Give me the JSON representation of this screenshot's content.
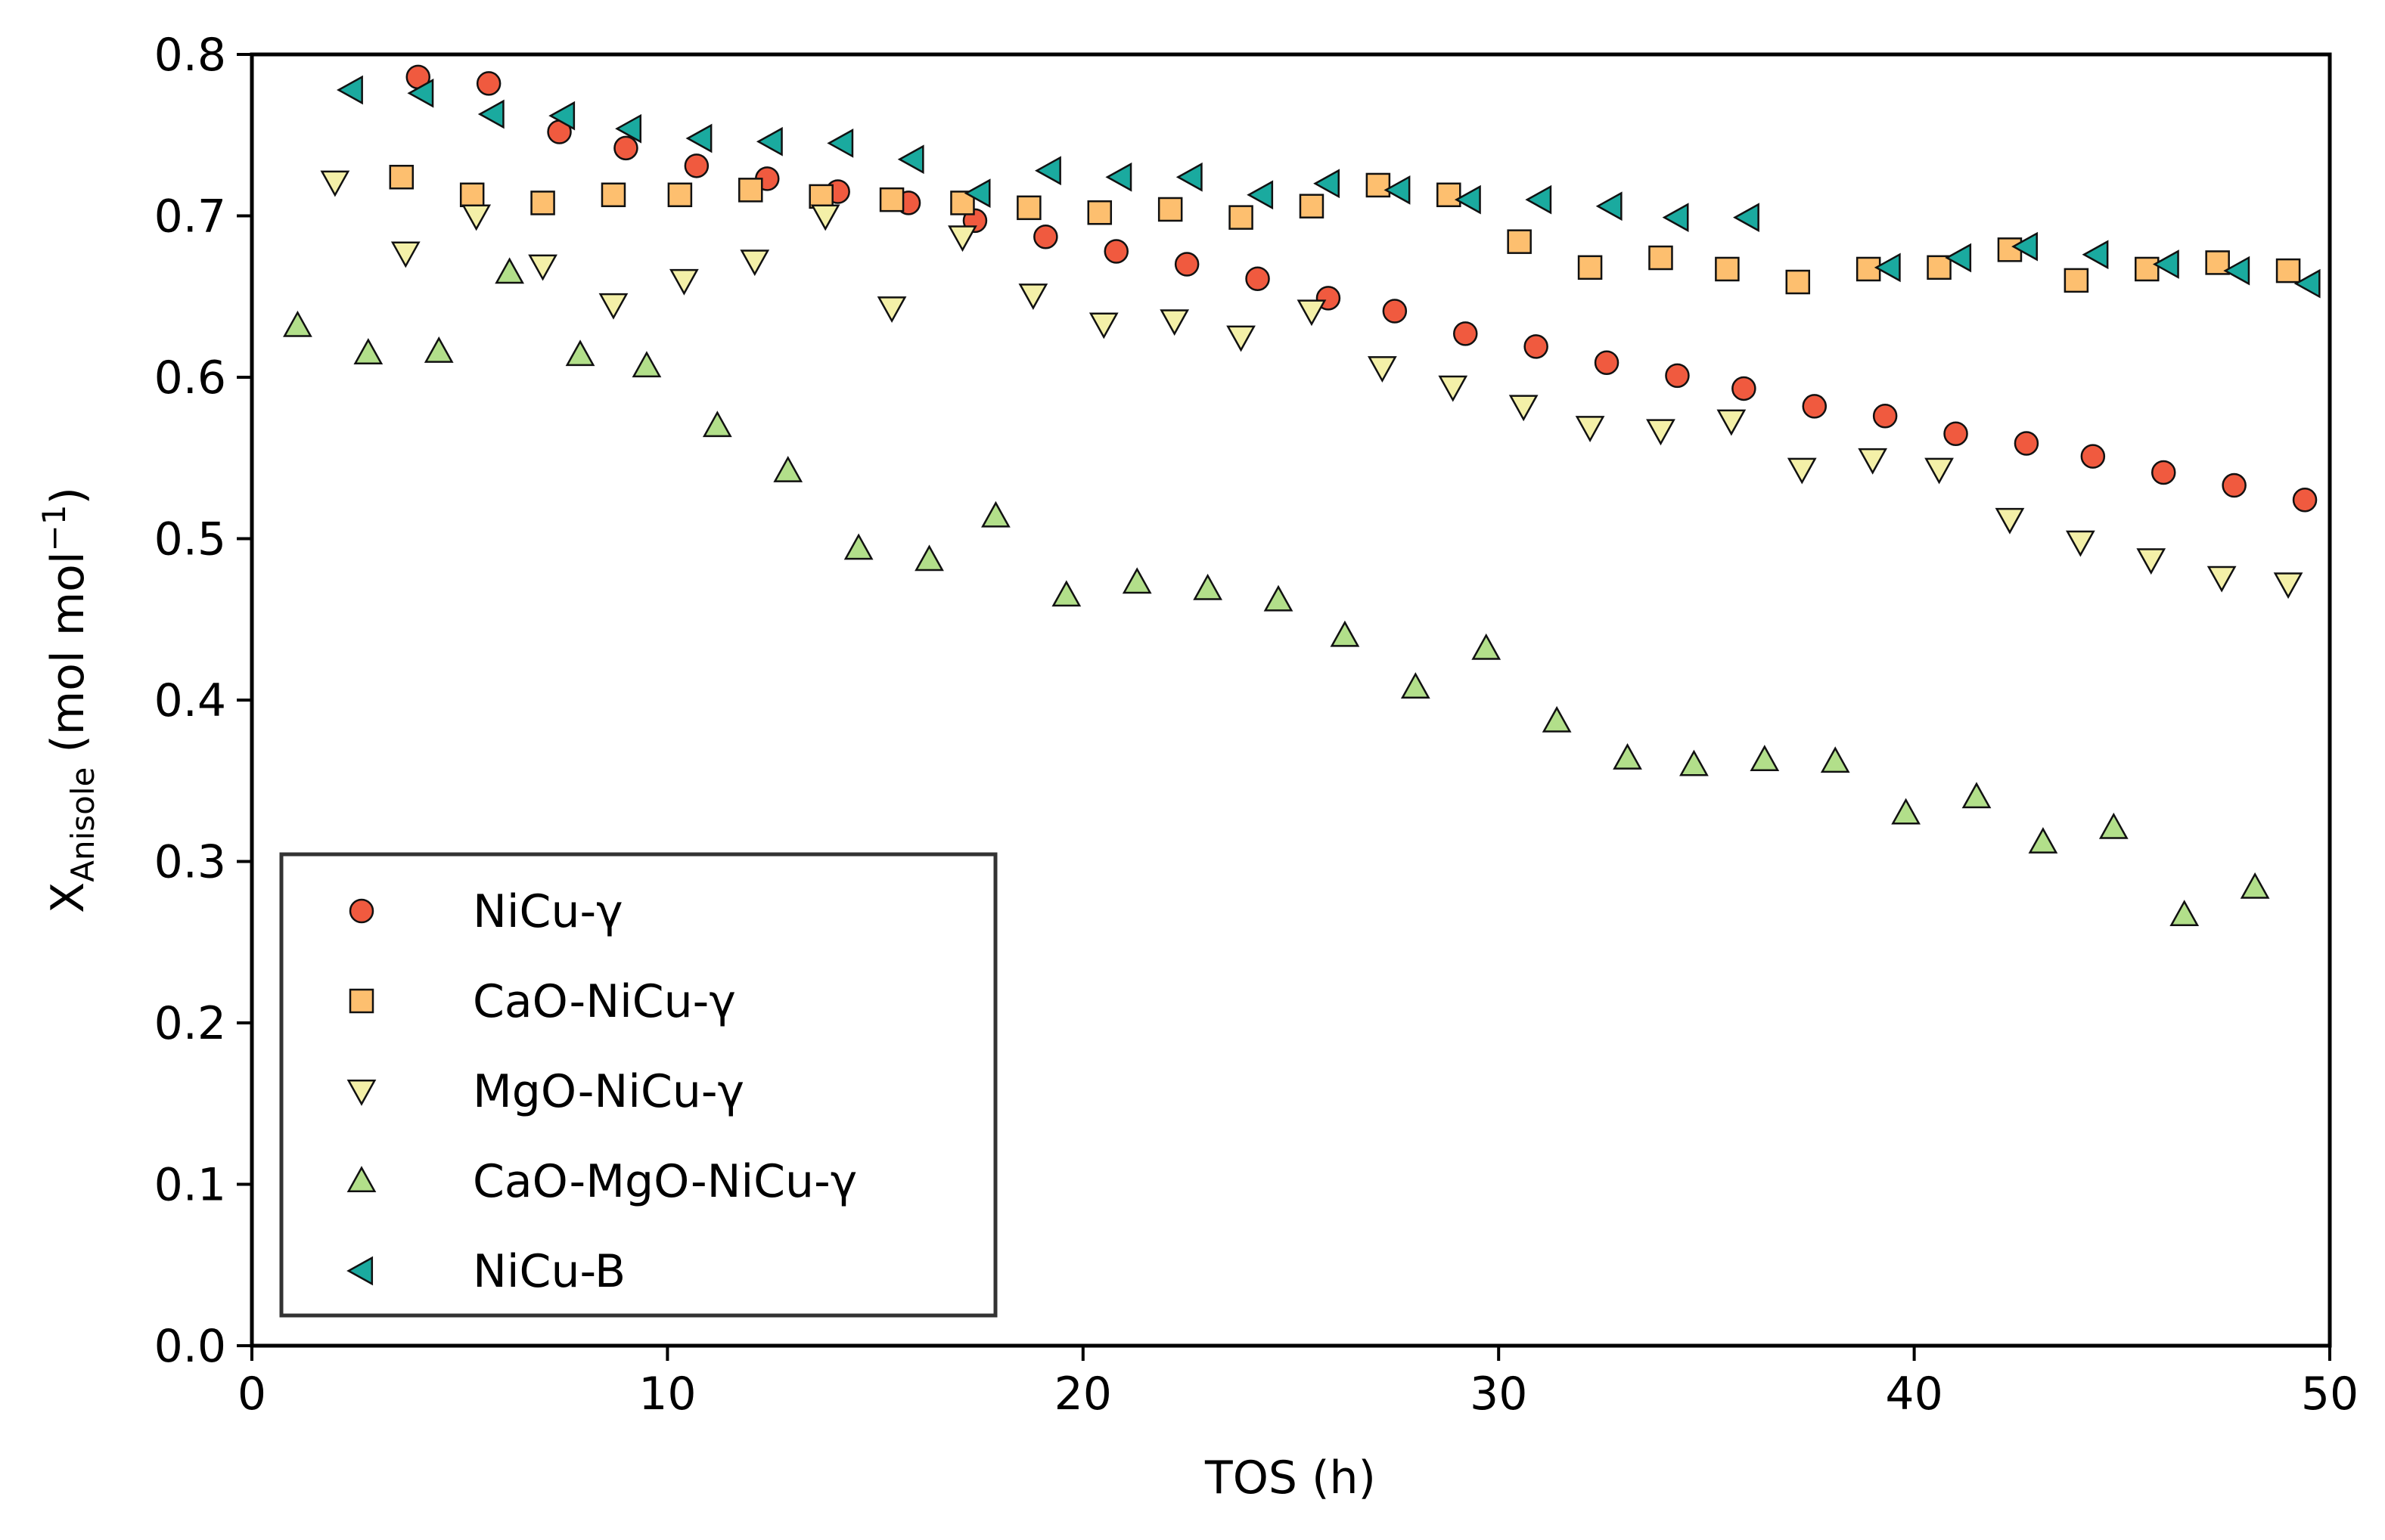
{
  "chart_data": {
    "type": "scatter",
    "title": "",
    "xlabel": "TOS (h)",
    "ylabel": {
      "main": "X",
      "subscript": "Anisole",
      "units_open": " (mol mol",
      "units_sup": "−1",
      "units_close": ")"
    },
    "xlim": [
      0,
      50
    ],
    "ylim": [
      0,
      0.8
    ],
    "xticks": [
      "0",
      "10",
      "20",
      "30",
      "40",
      "50"
    ],
    "yticks": [
      "0.0",
      "0.1",
      "0.2",
      "0.3",
      "0.4",
      "0.5",
      "0.6",
      "0.7",
      "0.8"
    ],
    "grid": false,
    "legend_position": "lower-left",
    "series": [
      {
        "name": "NiCu-γ",
        "marker": "circle",
        "color": "#f05a3f",
        "x": [
          4.0,
          5.7,
          7.4,
          9.0,
          10.7,
          12.4,
          14.1,
          15.8,
          17.4,
          19.1,
          20.8,
          22.5,
          24.2,
          25.9,
          27.5,
          29.2,
          30.9,
          32.6,
          34.3,
          35.9,
          37.6,
          39.3,
          41.0,
          42.7,
          44.3,
          46.0,
          47.7,
          49.4
        ],
        "y": [
          0.786,
          0.782,
          0.752,
          0.742,
          0.731,
          0.723,
          0.715,
          0.708,
          0.697,
          0.687,
          0.678,
          0.67,
          0.661,
          0.649,
          0.641,
          0.627,
          0.619,
          0.609,
          0.601,
          0.593,
          0.582,
          0.576,
          0.565,
          0.559,
          0.551,
          0.541,
          0.533,
          0.524
        ]
      },
      {
        "name": "CaO-NiCu-γ",
        "marker": "square",
        "color": "#fdbf6f",
        "x": [
          3.6,
          5.3,
          7.0,
          8.7,
          10.3,
          12.0,
          13.7,
          15.4,
          17.1,
          18.7,
          20.4,
          22.1,
          23.8,
          25.5,
          27.1,
          28.8,
          30.5,
          32.2,
          33.9,
          35.5,
          37.2,
          38.9,
          40.6,
          42.3,
          43.9,
          45.6,
          47.3,
          49.0
        ],
        "y": [
          0.724,
          0.713,
          0.708,
          0.713,
          0.713,
          0.716,
          0.712,
          0.71,
          0.708,
          0.705,
          0.702,
          0.704,
          0.699,
          0.706,
          0.719,
          0.713,
          0.684,
          0.668,
          0.674,
          0.667,
          0.659,
          0.667,
          0.668,
          0.679,
          0.66,
          0.667,
          0.671,
          0.666
        ]
      },
      {
        "name": "MgO-NiCu-γ",
        "marker": "triangle-down",
        "color": "#f4f0a8",
        "x": [
          2.0,
          3.7,
          5.4,
          7.0,
          8.7,
          10.4,
          12.1,
          13.8,
          15.4,
          17.1,
          18.8,
          20.5,
          22.2,
          23.8,
          25.5,
          27.2,
          28.9,
          30.6,
          32.2,
          33.9,
          35.6,
          37.3,
          39.0,
          40.6,
          42.3,
          44.0,
          45.7,
          47.4,
          49.0
        ],
        "y": [
          0.721,
          0.677,
          0.7,
          0.669,
          0.645,
          0.66,
          0.672,
          0.7,
          0.643,
          0.687,
          0.651,
          0.633,
          0.635,
          0.625,
          0.641,
          0.606,
          0.594,
          0.582,
          0.569,
          0.567,
          0.573,
          0.543,
          0.549,
          0.543,
          0.512,
          0.498,
          0.487,
          0.476,
          0.472
        ]
      },
      {
        "name": "CaO-MgO-NiCu-γ",
        "marker": "triangle-up",
        "color": "#b2df8a",
        "x": [
          1.1,
          2.8,
          4.5,
          6.2,
          7.9,
          9.5,
          11.2,
          12.9,
          14.6,
          16.3,
          17.9,
          19.6,
          21.3,
          23.0,
          24.7,
          26.3,
          28.0,
          29.7,
          31.4,
          33.1,
          34.7,
          36.4,
          38.1,
          39.8,
          41.5,
          43.1,
          44.8,
          46.5,
          48.2
        ],
        "y": [
          0.632,
          0.615,
          0.616,
          0.665,
          0.614,
          0.607,
          0.57,
          0.542,
          0.494,
          0.487,
          0.514,
          0.465,
          0.473,
          0.469,
          0.462,
          0.44,
          0.408,
          0.432,
          0.387,
          0.364,
          0.36,
          0.363,
          0.362,
          0.33,
          0.34,
          0.312,
          0.321,
          0.267,
          0.284
        ]
      },
      {
        "name": "NiCu-B",
        "marker": "triangle-left",
        "color": "#1aaa9f",
        "x": [
          2.4,
          4.1,
          5.8,
          7.5,
          9.1,
          10.8,
          12.5,
          14.2,
          15.9,
          17.5,
          19.2,
          20.9,
          22.6,
          24.3,
          25.9,
          27.6,
          29.3,
          31.0,
          32.7,
          34.3,
          36.0,
          39.4,
          41.1,
          42.7,
          44.4,
          46.1,
          47.8,
          49.5
        ],
        "y": [
          0.778,
          0.776,
          0.763,
          0.762,
          0.754,
          0.748,
          0.746,
          0.745,
          0.735,
          0.714,
          0.728,
          0.724,
          0.724,
          0.713,
          0.72,
          0.716,
          0.71,
          0.71,
          0.706,
          0.699,
          0.699,
          0.668,
          0.674,
          0.681,
          0.676,
          0.67,
          0.666,
          0.658
        ]
      }
    ]
  }
}
